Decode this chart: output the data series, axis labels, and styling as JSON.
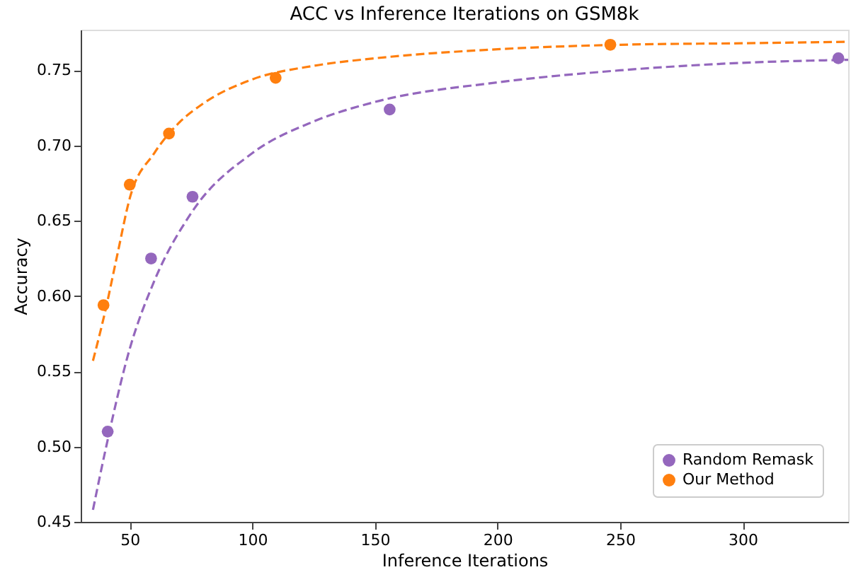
{
  "chart_data": {
    "type": "scatter",
    "title": "ACC vs Inference Iterations on GSM8k",
    "xlabel": "Inference Iterations",
    "ylabel": "Accuracy",
    "xlim": [
      30,
      343
    ],
    "xticks": [
      50,
      100,
      150,
      200,
      250,
      300
    ],
    "ylim": [
      0.45,
      0.777
    ],
    "yticks": [
      {
        "value": 0.45,
        "label": "0.45"
      },
      {
        "value": 0.5,
        "label": "0.50"
      },
      {
        "value": 0.55,
        "label": "0.55"
      },
      {
        "value": 0.6,
        "label": "0.60"
      },
      {
        "value": 0.65,
        "label": "0.65"
      },
      {
        "value": 0.7,
        "label": "0.70"
      },
      {
        "value": 0.75,
        "label": "0.75"
      }
    ],
    "grid": false,
    "legend": "bottom right",
    "marker": "circle",
    "series": [
      {
        "name": "Random Remask",
        "color": "#9467bd",
        "x": [
          41,
          58.7,
          75.6,
          156,
          339
        ],
        "values": [
          0.51,
          0.625,
          0.666,
          0.724,
          0.758
        ]
      },
      {
        "name": "Our Method",
        "color": "#ff7f0e",
        "x": [
          39.3,
          50,
          66,
          109.5,
          246
        ],
        "values": [
          0.594,
          0.674,
          0.708,
          0.745,
          0.767
        ]
      },
      {
        "type": "line",
        "marker": "none",
        "line_style": "dashed",
        "color": "#9467bd",
        "x": [
          35,
          40,
          50,
          60,
          75,
          100,
          125,
          150,
          200,
          250,
          300,
          343
        ],
        "values": [
          0.458,
          0.497,
          0.565,
          0.61,
          0.655,
          0.695,
          0.716,
          0.729,
          0.742,
          0.75,
          0.755,
          0.757
        ]
      },
      {
        "type": "line",
        "marker": "none",
        "line_style": "dashed",
        "color": "#ff7f0e",
        "x": [
          35,
          40,
          45,
          50,
          60,
          70,
          80,
          100,
          125,
          150,
          200,
          250,
          300,
          343
        ],
        "values": [
          0.557,
          0.59,
          0.628,
          0.665,
          0.695,
          0.715,
          0.728,
          0.744,
          0.753,
          0.758,
          0.764,
          0.767,
          0.768,
          0.769
        ]
      }
    ]
  }
}
